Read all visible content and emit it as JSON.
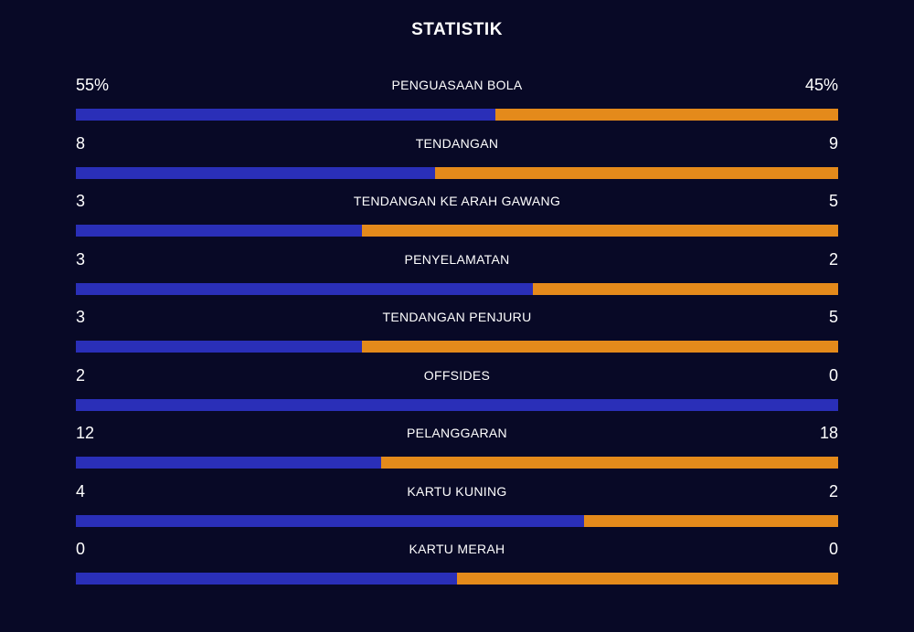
{
  "title": "STATISTIK",
  "colors": {
    "background": "#080926",
    "home": "#2a2fb8",
    "away": "#e48a1b"
  },
  "stats": [
    {
      "label": "PENGUASAAN BOLA",
      "home": "55%",
      "away": "45%",
      "home_share": 0.55
    },
    {
      "label": "TENDANGAN",
      "home": "8",
      "away": "9",
      "home_share": 0.471
    },
    {
      "label": "TENDANGAN KE ARAH GAWANG",
      "home": "3",
      "away": "5",
      "home_share": 0.375
    },
    {
      "label": "PENYELAMATAN",
      "home": "3",
      "away": "2",
      "home_share": 0.6
    },
    {
      "label": "TENDANGAN PENJURU",
      "home": "3",
      "away": "5",
      "home_share": 0.375
    },
    {
      "label": "OFFSIDES",
      "home": "2",
      "away": "0",
      "home_share": 1.0
    },
    {
      "label": "PELANGGARAN",
      "home": "12",
      "away": "18",
      "home_share": 0.4
    },
    {
      "label": "KARTU KUNING",
      "home": "4",
      "away": "2",
      "home_share": 0.667
    },
    {
      "label": "KARTU MERAH",
      "home": "0",
      "away": "0",
      "home_share": 0.5
    }
  ]
}
